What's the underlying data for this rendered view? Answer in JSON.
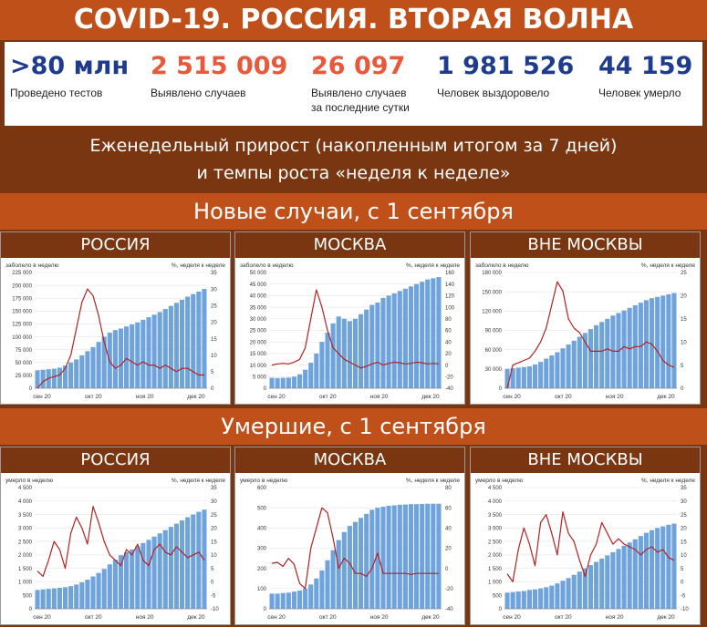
{
  "title": "COVID-19. РОССИЯ. ВТОРАЯ ВОЛНА",
  "stats": [
    {
      "value": ">80 млн",
      "label": "Проведено тестов",
      "color": "#1f3b8c"
    },
    {
      "value": "2 515 009",
      "label": "Выявлено случаев",
      "color": "#e8593c"
    },
    {
      "value": "26 097",
      "label": "Выявлено случаев\nза последние сутки",
      "color": "#e8593c"
    },
    {
      "value": "1 981 526",
      "label": "Человек выздоровело",
      "color": "#1f3b8c"
    },
    {
      "value": "44 159",
      "label": "Человек умерло",
      "color": "#1f3b8c"
    }
  ],
  "banner": {
    "line1": "Еженедельный прирост (накопленным итогом за 7 дней)",
    "line2": "и темпы роста «неделя к неделе»"
  },
  "sections": {
    "cases": "Новые случаи, с 1 сентября",
    "deaths": "Умершие, с 1 сентября"
  },
  "colors": {
    "bars": "#6fa3dc",
    "line": "#b22222",
    "accent": "#c0501a",
    "dark": "#7a3610"
  },
  "chart_data": [
    {
      "type": "bar+line",
      "region": "РОССИЯ",
      "left_label": "заболело в неделю",
      "right_label": "%, неделя к неделе",
      "x_ticks": [
        "сен 20",
        "окт 20",
        "ноя 20",
        "дек 20"
      ],
      "y_ticks": [
        "0",
        "25 000",
        "50 000",
        "75 000",
        "100 000",
        "125 000",
        "150 000",
        "175 000",
        "200 000",
        "225 000"
      ],
      "y2_ticks": [
        "0",
        "5",
        "10",
        "15",
        "20",
        "25",
        "30",
        "35"
      ],
      "ylim": [
        0,
        225000
      ],
      "y2lim": [
        0,
        35
      ],
      "bars": [
        35000,
        36000,
        37000,
        38000,
        40000,
        44000,
        50000,
        56000,
        64000,
        72000,
        80000,
        90000,
        100000,
        108000,
        113000,
        116000,
        120000,
        124000,
        128000,
        133000,
        138000,
        143000,
        148000,
        154000,
        160000,
        166000,
        172000,
        178000,
        183000,
        188000,
        193000
      ],
      "line": [
        0,
        2,
        3,
        3.5,
        4,
        6,
        10,
        18,
        26,
        30,
        28,
        22,
        14,
        8,
        6,
        7,
        9,
        8,
        7,
        8,
        7,
        7,
        6,
        7,
        6,
        5,
        6,
        6,
        5,
        4,
        4
      ]
    },
    {
      "type": "bar+line",
      "region": "МОСКВА",
      "left_label": "заболело в неделю",
      "right_label": "%, неделя к неделе",
      "x_ticks": [
        "сен 20",
        "окт 20",
        "ноя 20",
        "дек 20"
      ],
      "y_ticks": [
        "0",
        "5 000",
        "10 000",
        "15 000",
        "20 000",
        "25 000",
        "30 000",
        "35 000",
        "40 000",
        "45 000",
        "50 000"
      ],
      "y2_ticks": [
        "-40",
        "-20",
        "0",
        "20",
        "40",
        "60",
        "80",
        "100",
        "120",
        "140",
        "160"
      ],
      "ylim": [
        0,
        50000
      ],
      "y2lim": [
        -40,
        160
      ],
      "bars": [
        4500,
        4400,
        4500,
        4600,
        5000,
        6000,
        8000,
        11000,
        15000,
        20000,
        24000,
        28000,
        31000,
        30000,
        29000,
        30000,
        32000,
        34000,
        36000,
        37000,
        39000,
        40000,
        41000,
        42000,
        43000,
        44000,
        45000,
        46000,
        47000,
        47500,
        48000
      ],
      "line": [
        0,
        2,
        3,
        2,
        5,
        10,
        30,
        80,
        130,
        100,
        60,
        30,
        20,
        10,
        5,
        0,
        -5,
        -2,
        2,
        5,
        0,
        3,
        5,
        4,
        2,
        3,
        5,
        4,
        2,
        3,
        2
      ]
    },
    {
      "type": "bar+line",
      "region": "ВНЕ МОСКВЫ",
      "left_label": "заболело в неделю",
      "right_label": "%, неделя к неделе",
      "x_ticks": [
        "сен 20",
        "окт 20",
        "ноя 20",
        "дек 20"
      ],
      "y_ticks": [
        "0",
        "30 000",
        "60 000",
        "90 000",
        "120 000",
        "150 000",
        "180 000"
      ],
      "y2_ticks": [
        "0",
        "5",
        "10",
        "15",
        "20",
        "25"
      ],
      "ylim": [
        0,
        180000
      ],
      "y2lim": [
        0,
        25
      ],
      "bars": [
        30000,
        31000,
        32000,
        33000,
        34000,
        37000,
        41000,
        46000,
        51000,
        56000,
        62000,
        68000,
        74000,
        80000,
        86000,
        92000,
        98000,
        103000,
        108000,
        113000,
        117000,
        121000,
        125000,
        129000,
        133000,
        137000,
        140000,
        142000,
        144000,
        146000,
        148000
      ],
      "line": [
        0,
        5,
        5.5,
        6,
        6.5,
        8,
        10,
        13,
        18,
        23,
        21,
        15,
        13,
        12,
        10,
        8,
        8,
        8,
        8.5,
        8,
        8,
        9,
        8.5,
        9,
        9,
        10,
        9.5,
        8,
        6,
        5,
        4.5
      ]
    },
    {
      "type": "bar+line",
      "region": "РОССИЯ",
      "left_label": "умерло в неделю",
      "right_label": "%, неделя к неделе",
      "x_ticks": [
        "сен 20",
        "окт 20",
        "ноя 20",
        "дек 20"
      ],
      "y_ticks": [
        "0",
        "500",
        "1 000",
        "1 500",
        "2 000",
        "2 500",
        "3 000",
        "3 500",
        "4 000",
        "4 500"
      ],
      "y2_ticks": [
        "-10",
        "-5",
        "0",
        "5",
        "10",
        "15",
        "20",
        "25",
        "30",
        "35"
      ],
      "ylim": [
        0,
        4500
      ],
      "y2lim": [
        -10,
        35
      ],
      "bars": [
        700,
        720,
        740,
        760,
        780,
        800,
        840,
        900,
        980,
        1080,
        1200,
        1330,
        1480,
        1650,
        1820,
        1990,
        2100,
        2200,
        2320,
        2440,
        2560,
        2680,
        2800,
        2920,
        3040,
        3160,
        3280,
        3400,
        3500,
        3600,
        3680
      ],
      "line": [
        4,
        2,
        8,
        15,
        12,
        5,
        18,
        24,
        20,
        14,
        28,
        22,
        15,
        10,
        8,
        6,
        12,
        10,
        14,
        8,
        6,
        12,
        14,
        11,
        10,
        13,
        11,
        9,
        10,
        11,
        8
      ]
    },
    {
      "type": "bar+line",
      "region": "МОСКВА",
      "left_label": "умерло в неделю",
      "right_label": "%, неделя к неделе",
      "x_ticks": [
        "сен 20",
        "окт 20",
        "ноя 20",
        "дек 20"
      ],
      "y_ticks": [
        "0",
        "100",
        "200",
        "300",
        "400",
        "500",
        "600"
      ],
      "y2_ticks": [
        "-40",
        "-20",
        "0",
        "20",
        "40",
        "60",
        "80"
      ],
      "ylim": [
        0,
        600
      ],
      "y2lim": [
        -40,
        80
      ],
      "bars": [
        75,
        75,
        78,
        80,
        85,
        90,
        100,
        120,
        150,
        190,
        240,
        290,
        340,
        380,
        410,
        430,
        450,
        470,
        490,
        500,
        505,
        510,
        512,
        515,
        516,
        518,
        518,
        519,
        520,
        520,
        520
      ],
      "line": [
        5,
        6,
        2,
        10,
        4,
        -15,
        -20,
        20,
        40,
        60,
        55,
        30,
        0,
        10,
        5,
        -5,
        -5,
        -8,
        0,
        15,
        -5,
        -5,
        -5,
        -5,
        -5,
        -6,
        -5,
        -5,
        -5,
        -5,
        -5
      ]
    },
    {
      "type": "bar+line",
      "region": "ВНЕ МОСКВЫ",
      "left_label": "умерло в неделю",
      "right_label": "%, неделя к неделе",
      "x_ticks": [
        "сен 20",
        "окт 20",
        "ноя 20",
        "дек 20"
      ],
      "y_ticks": [
        "0",
        "500",
        "1 000",
        "1 500",
        "2 000",
        "2 500",
        "3 000",
        "3 500",
        "4 000",
        "4 500"
      ],
      "y2_ticks": [
        "-10",
        "-5",
        "0",
        "5",
        "10",
        "15",
        "20",
        "25",
        "30",
        "35"
      ],
      "ylim": [
        0,
        4500
      ],
      "y2lim": [
        -10,
        35
      ],
      "bars": [
        600,
        620,
        640,
        660,
        700,
        720,
        760,
        800,
        860,
        940,
        1040,
        1140,
        1260,
        1380,
        1500,
        1620,
        1740,
        1860,
        1980,
        2100,
        2220,
        2340,
        2460,
        2580,
        2700,
        2820,
        2920,
        3000,
        3060,
        3120,
        3160
      ],
      "line": [
        3,
        0,
        12,
        20,
        14,
        6,
        22,
        25,
        18,
        10,
        26,
        18,
        15,
        8,
        2,
        10,
        14,
        22,
        18,
        14,
        16,
        14,
        13,
        12,
        10,
        12,
        13,
        11,
        12,
        9,
        8
      ]
    }
  ]
}
